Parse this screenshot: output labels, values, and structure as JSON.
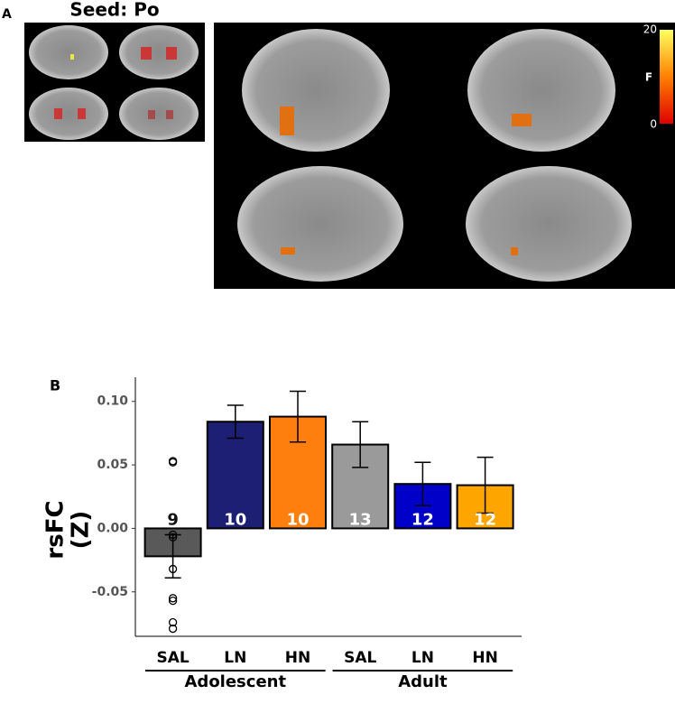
{
  "panel_a": {
    "label": "A",
    "title": "Seed: Po",
    "colorbar_ticks": [
      20,
      0
    ],
    "colorbar_label": "F"
  },
  "chart_data": {
    "type": "bar",
    "panel_label": "B",
    "categories": [
      "SAL",
      "LN",
      "HN",
      "SAL",
      "LN",
      "HN"
    ],
    "groups": [
      "Adolescent",
      "Adolescent",
      "Adolescent",
      "Adult",
      "Adult",
      "Adult"
    ],
    "values": [
      -0.022,
      0.084,
      0.088,
      0.066,
      0.035,
      0.034
    ],
    "errors": [
      0.017,
      0.013,
      0.02,
      0.018,
      0.017,
      0.022
    ],
    "n": [
      9,
      10,
      10,
      13,
      12,
      12
    ],
    "colors": [
      "#595959",
      "#1c1f73",
      "#ff7f0e",
      "#9a9a9a",
      "#0000c8",
      "#ffa500"
    ],
    "points": [
      0.053,
      0.052,
      -0.005,
      -0.007,
      -0.032,
      -0.055,
      -0.057,
      -0.074,
      -0.079
    ],
    "ylabel": [
      "rsFC",
      "(Z)"
    ],
    "ylim": [
      -0.085,
      0.119
    ],
    "yticks": [
      {
        "value": 0.1,
        "label": "0.10"
      },
      0.05,
      {
        "value": 0,
        "label": "0.00"
      },
      -0.05
    ]
  }
}
